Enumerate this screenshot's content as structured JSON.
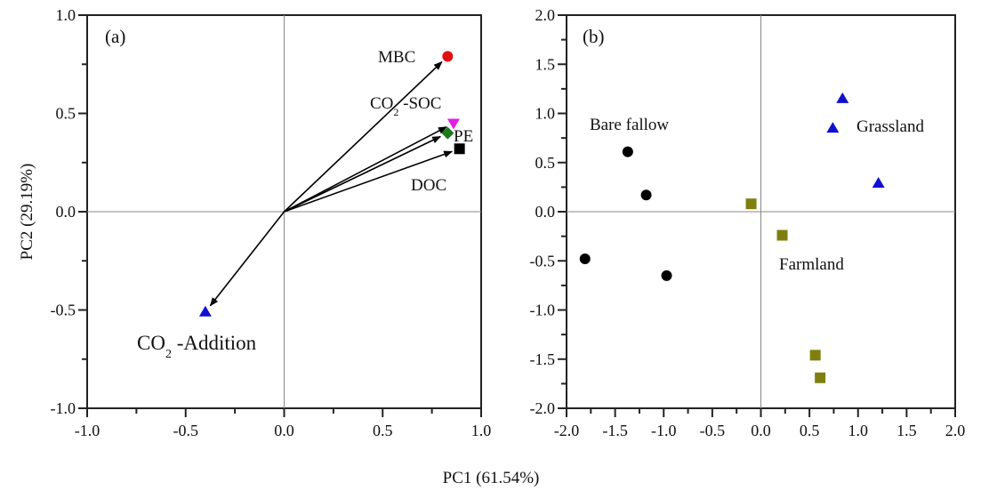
{
  "chart_data": [
    {
      "type": "scatter",
      "subtype": "biplot",
      "panel_label": "(a)",
      "xlabel": "PC1 (61.54%)",
      "ylabel": "PC2 (29.19%)",
      "xlim": [
        -1.0,
        1.0
      ],
      "ylim": [
        -1.0,
        1.0
      ],
      "xticks": [
        "-1.0",
        "-0.5",
        "0.0",
        "0.5",
        "1.0"
      ],
      "yticks": [
        "-1.0",
        "-0.5",
        "0.0",
        "0.5",
        "1.0"
      ],
      "grid": false,
      "zero_lines": true,
      "vectors": [
        {
          "name": "MBC",
          "x": 0.83,
          "y": 0.79,
          "marker": "circle",
          "color": "#e01010"
        },
        {
          "name": "CO2-SOC",
          "x": 0.86,
          "y": 0.45,
          "marker": "triangle-down",
          "color": "#e020e0"
        },
        {
          "name": "PE",
          "x": 0.83,
          "y": 0.4,
          "marker": "diamond",
          "color": "#1a7a1a"
        },
        {
          "name": "DOC",
          "x": 0.89,
          "y": 0.32,
          "marker": "square",
          "color": "#000000"
        },
        {
          "name": "CO2-Addition",
          "x": -0.4,
          "y": -0.51,
          "marker": "triangle-up",
          "color": "#1010d0"
        }
      ],
      "labels": {
        "MBC": "MBC",
        "co2_soc_main": "CO",
        "co2_soc_sub": "2",
        "co2_soc_rest": " -SOC",
        "PE": "PE",
        "DOC": "DOC",
        "co2_add_main": "CO",
        "co2_add_sub": "2",
        "co2_add_rest": " -Addition"
      }
    },
    {
      "type": "scatter",
      "panel_label": "(b)",
      "xlim": [
        -2.0,
        2.0
      ],
      "ylim": [
        -2.0,
        2.0
      ],
      "xticks": [
        "-2.0",
        "-1.5",
        "-1.0",
        "-0.5",
        "0.0",
        "0.5",
        "1.0",
        "1.5",
        "2.0"
      ],
      "yticks": [
        "-2.0",
        "-1.5",
        "-1.0",
        "-0.5",
        "0.0",
        "0.5",
        "1.0",
        "1.5",
        "2.0"
      ],
      "grid": false,
      "zero_lines": true,
      "series": [
        {
          "name": "Bare fallow",
          "marker": "circle",
          "color": "#000000",
          "points": [
            [
              -1.37,
              0.61
            ],
            [
              -1.18,
              0.17
            ],
            [
              -1.81,
              -0.48
            ],
            [
              -0.97,
              -0.65
            ]
          ]
        },
        {
          "name": "Farmland",
          "marker": "square",
          "color": "#7f7f10",
          "points": [
            [
              -0.1,
              0.08
            ],
            [
              0.22,
              -0.24
            ],
            [
              0.56,
              -1.46
            ],
            [
              0.61,
              -1.69
            ]
          ]
        },
        {
          "name": "Grassland",
          "marker": "triangle-up",
          "color": "#1010d0",
          "points": [
            [
              0.84,
              1.15
            ],
            [
              0.74,
              0.85
            ],
            [
              1.21,
              0.29
            ]
          ]
        }
      ]
    }
  ]
}
